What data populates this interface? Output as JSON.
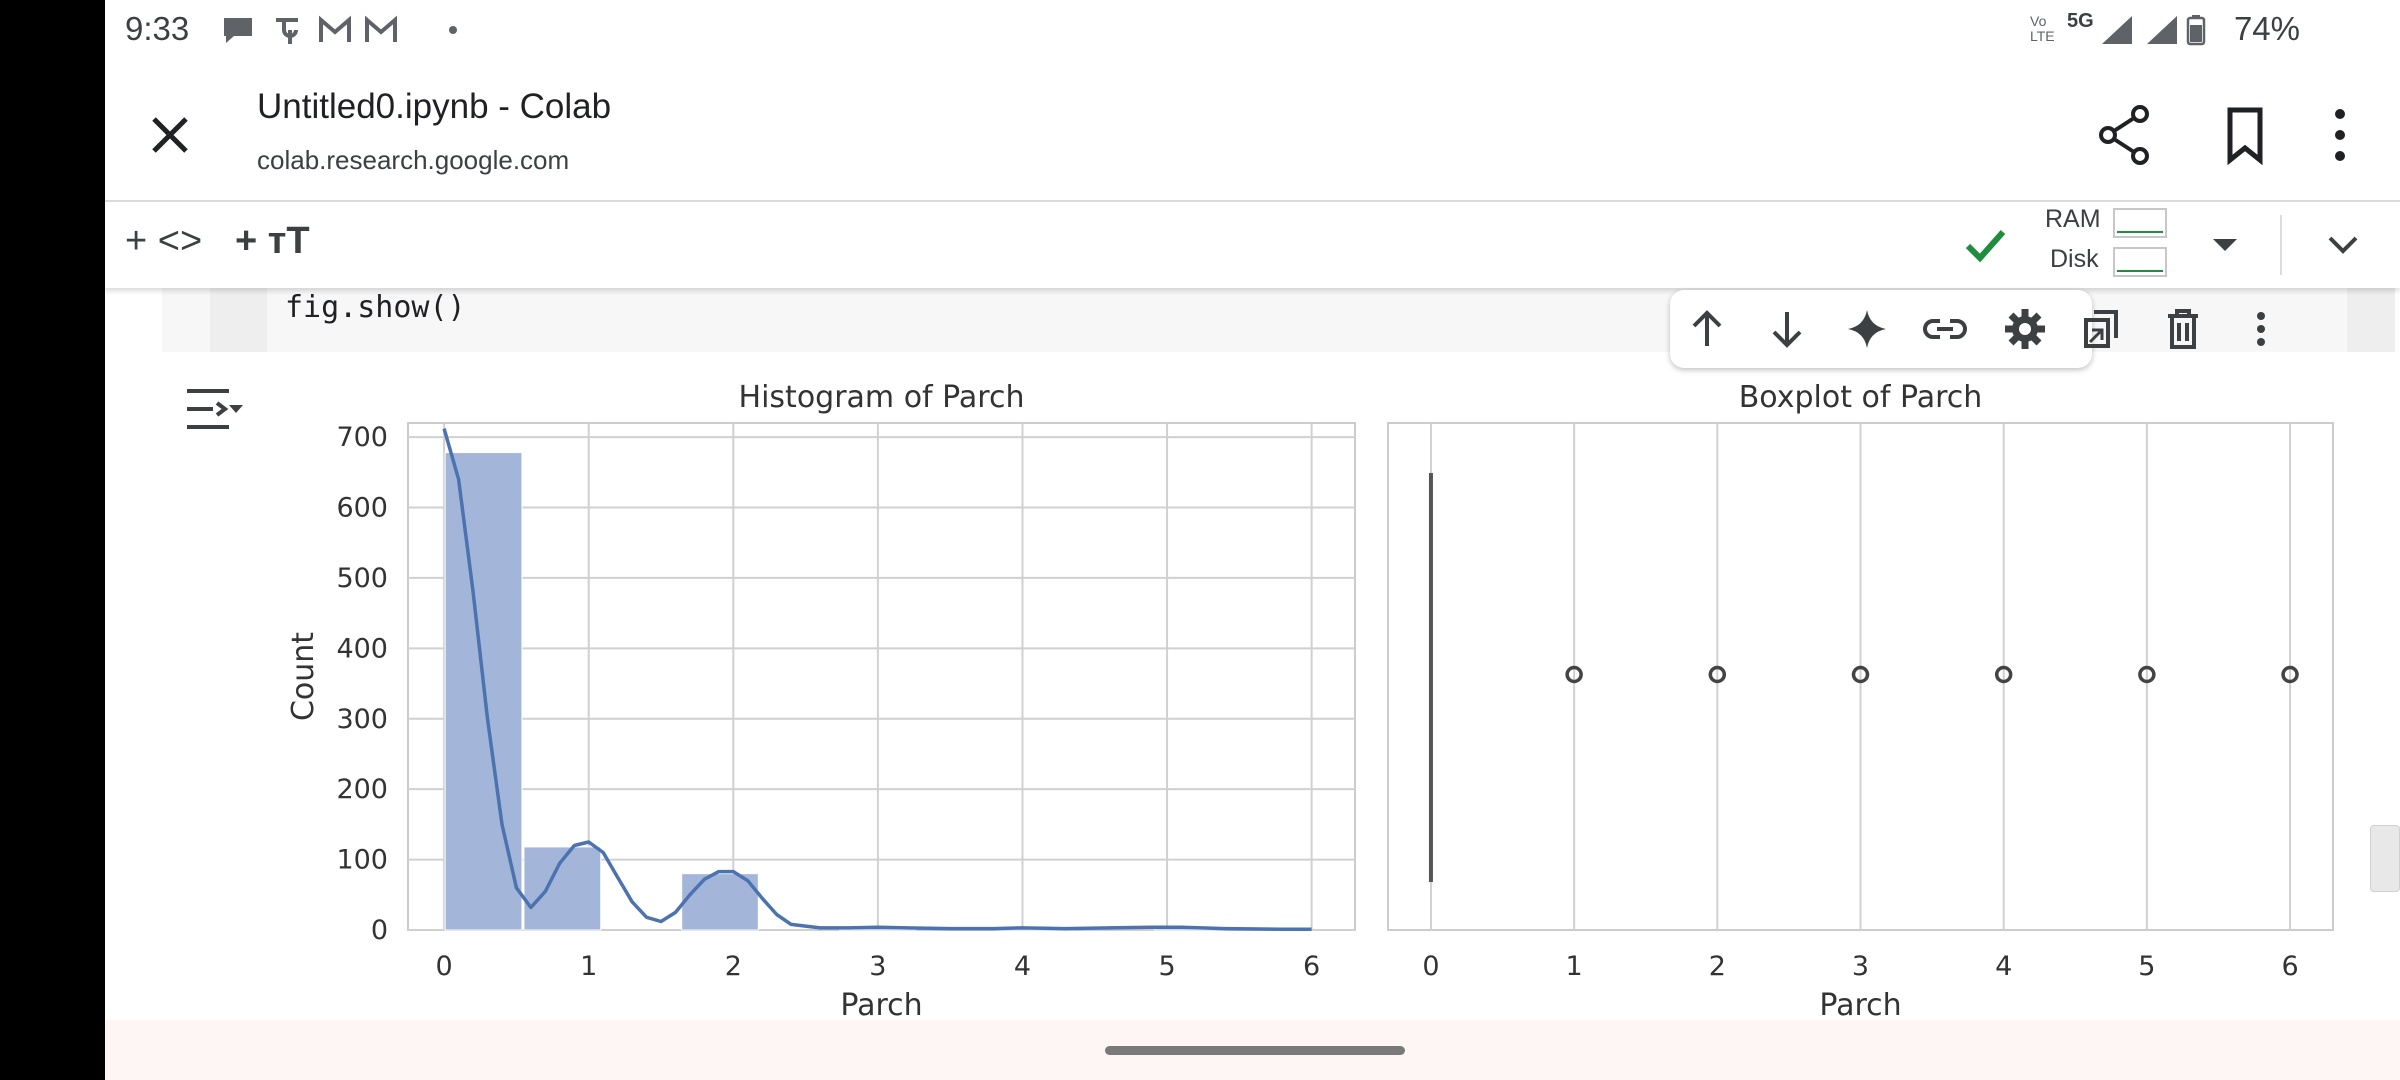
{
  "status_bar": {
    "time": "9:33",
    "network": "5G",
    "volte": "Vo LTE",
    "battery": "74%"
  },
  "browser": {
    "title": "Untitled0.ipynb - Colab",
    "url": "colab.research.google.com"
  },
  "toolbar": {
    "add_code": "+ <>",
    "add_text": "+ ᴛT",
    "ram_label": "RAM",
    "disk_label": "Disk"
  },
  "cell": {
    "code": "fig.show()"
  },
  "colors": {
    "bar": "#a3b6da",
    "line": "#4c72b0",
    "grid": "#d0d0d0",
    "connected": "#1e8e3e"
  },
  "chart_data": [
    {
      "type": "bar",
      "title": "Histogram of Parch",
      "xlabel": "Parch",
      "ylabel": "Count",
      "xlim": [
        -0.25,
        6.3
      ],
      "ylim": [
        0,
        720
      ],
      "xticks": [
        "0",
        "1",
        "2",
        "3",
        "4",
        "5",
        "6"
      ],
      "yticks": [
        "0",
        "100",
        "200",
        "300",
        "400",
        "500",
        "600",
        "700"
      ],
      "bins": [
        {
          "x0": 0.0,
          "x1": 0.545,
          "count": 678
        },
        {
          "x0": 0.545,
          "x1": 1.09,
          "count": 118
        },
        {
          "x0": 1.09,
          "x1": 1.636,
          "count": 0
        },
        {
          "x0": 1.636,
          "x1": 2.18,
          "count": 80
        },
        {
          "x0": 2.18,
          "x1": 2.727,
          "count": 0
        },
        {
          "x0": 2.727,
          "x1": 3.27,
          "count": 5
        },
        {
          "x0": 3.27,
          "x1": 3.818,
          "count": 0
        },
        {
          "x0": 3.818,
          "x1": 4.36,
          "count": 4
        },
        {
          "x0": 4.36,
          "x1": 4.909,
          "count": 0
        },
        {
          "x0": 4.909,
          "x1": 5.45,
          "count": 5
        },
        {
          "x0": 5.45,
          "x1": 6.0,
          "count": 1
        }
      ],
      "kde": [
        [
          0.0,
          712
        ],
        [
          0.1,
          640
        ],
        [
          0.2,
          480
        ],
        [
          0.3,
          300
        ],
        [
          0.4,
          150
        ],
        [
          0.5,
          60
        ],
        [
          0.6,
          32
        ],
        [
          0.7,
          55
        ],
        [
          0.8,
          95
        ],
        [
          0.9,
          120
        ],
        [
          1.0,
          125
        ],
        [
          1.1,
          110
        ],
        [
          1.2,
          75
        ],
        [
          1.3,
          40
        ],
        [
          1.4,
          18
        ],
        [
          1.5,
          12
        ],
        [
          1.6,
          25
        ],
        [
          1.7,
          50
        ],
        [
          1.8,
          72
        ],
        [
          1.9,
          83
        ],
        [
          2.0,
          83
        ],
        [
          2.1,
          70
        ],
        [
          2.2,
          45
        ],
        [
          2.3,
          22
        ],
        [
          2.4,
          8
        ],
        [
          2.6,
          3
        ],
        [
          2.8,
          3
        ],
        [
          3.0,
          4
        ],
        [
          3.2,
          3
        ],
        [
          3.5,
          2
        ],
        [
          3.8,
          2
        ],
        [
          4.0,
          3
        ],
        [
          4.3,
          2
        ],
        [
          4.6,
          3
        ],
        [
          4.9,
          4
        ],
        [
          5.1,
          4
        ],
        [
          5.4,
          2
        ],
        [
          5.8,
          1
        ],
        [
          6.0,
          1
        ]
      ],
      "grid": true
    },
    {
      "type": "box",
      "title": "Boxplot of Parch",
      "xlabel": "Parch",
      "xlim": [
        -0.3,
        6.3
      ],
      "xticks": [
        "0",
        "1",
        "2",
        "3",
        "4",
        "5",
        "6"
      ],
      "box": {
        "min": 0,
        "q1": 0,
        "median": 0,
        "q3": 0,
        "max": 0
      },
      "outliers": [
        1,
        2,
        3,
        4,
        5,
        6
      ],
      "grid": true
    }
  ]
}
